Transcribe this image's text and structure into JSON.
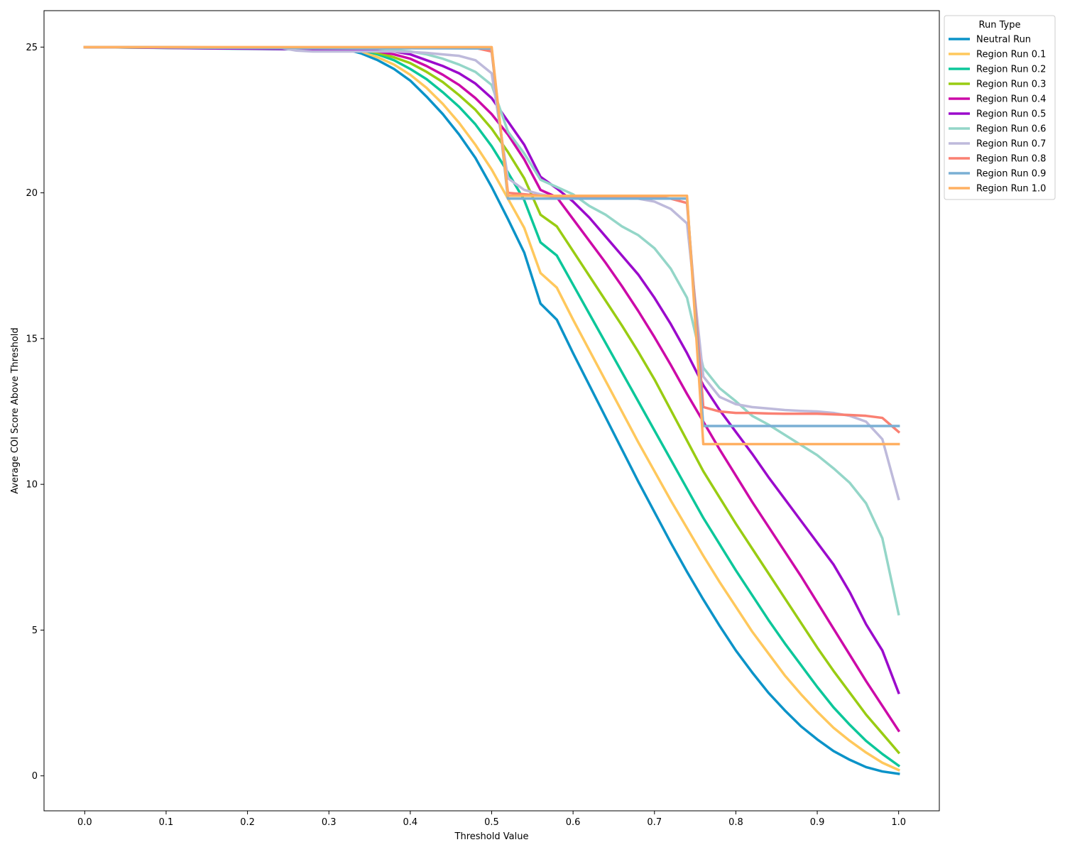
{
  "chart_data": {
    "type": "line",
    "xlabel": "Threshold Value",
    "ylabel": "Average COI Score Above Threshold",
    "xlim": [
      -0.05,
      1.05
    ],
    "ylim": [
      -1.2,
      26.25
    ],
    "xticks": [
      0.0,
      0.1,
      0.2,
      0.3,
      0.4,
      0.5,
      0.6,
      0.7,
      0.8,
      0.9,
      1.0
    ],
    "xtick_labels": [
      "0.0",
      "0.1",
      "0.2",
      "0.3",
      "0.4",
      "0.5",
      "0.6",
      "0.7",
      "0.8",
      "0.9",
      "1.0"
    ],
    "yticks": [
      0,
      5,
      10,
      15,
      20,
      25
    ],
    "ytick_labels": [
      "0",
      "5",
      "10",
      "15",
      "20",
      "25"
    ],
    "grid": false,
    "legend": {
      "title": "Run Type",
      "placement": "outside-top-right"
    },
    "series": [
      {
        "name": "Neutral Run",
        "color": "#0b93c8",
        "x": [
          0,
          0.3,
          0.32,
          0.34,
          0.36,
          0.38,
          0.4,
          0.42,
          0.44,
          0.46,
          0.48,
          0.5,
          0.52,
          0.54,
          0.56,
          0.58,
          0.6,
          0.62,
          0.64,
          0.66,
          0.68,
          0.7,
          0.72,
          0.74,
          0.76,
          0.78,
          0.8,
          0.82,
          0.84,
          0.86,
          0.88,
          0.9,
          0.92,
          0.94,
          0.96,
          0.98,
          1.0
        ],
        "y": [
          25,
          24.98,
          24.93,
          24.78,
          24.55,
          24.25,
          23.85,
          23.3,
          22.7,
          22.0,
          21.2,
          20.2,
          19.1,
          17.95,
          16.2,
          15.65,
          14.5,
          13.4,
          12.3,
          11.2,
          10.1,
          9.05,
          8.0,
          7.0,
          6.05,
          5.15,
          4.3,
          3.55,
          2.85,
          2.25,
          1.7,
          1.25,
          0.85,
          0.55,
          0.3,
          0.15,
          0.07
        ]
      },
      {
        "name": "Region Run 0.1",
        "color": "#ffc85c",
        "x": [
          0,
          0.32,
          0.34,
          0.36,
          0.38,
          0.4,
          0.42,
          0.44,
          0.46,
          0.48,
          0.5,
          0.52,
          0.54,
          0.56,
          0.58,
          0.6,
          0.62,
          0.64,
          0.66,
          0.68,
          0.7,
          0.72,
          0.74,
          0.76,
          0.78,
          0.8,
          0.82,
          0.84,
          0.86,
          0.88,
          0.9,
          0.92,
          0.94,
          0.96,
          0.98,
          1.0
        ],
        "y": [
          25,
          24.98,
          24.85,
          24.65,
          24.4,
          24.05,
          23.6,
          23.05,
          22.4,
          21.65,
          20.8,
          19.8,
          18.8,
          17.25,
          16.75,
          15.65,
          14.6,
          13.55,
          12.5,
          11.45,
          10.45,
          9.45,
          8.5,
          7.55,
          6.65,
          5.8,
          4.95,
          4.2,
          3.45,
          2.8,
          2.2,
          1.65,
          1.2,
          0.8,
          0.45,
          0.2
        ]
      },
      {
        "name": "Region Run 0.2",
        "color": "#0cc79a",
        "x": [
          0,
          0.34,
          0.36,
          0.38,
          0.4,
          0.42,
          0.44,
          0.46,
          0.48,
          0.5,
          0.52,
          0.54,
          0.56,
          0.58,
          0.6,
          0.62,
          0.64,
          0.66,
          0.68,
          0.7,
          0.72,
          0.74,
          0.76,
          0.78,
          0.8,
          0.82,
          0.84,
          0.86,
          0.88,
          0.9,
          0.92,
          0.94,
          0.96,
          0.98,
          1.0
        ],
        "y": [
          25,
          24.9,
          24.75,
          24.55,
          24.25,
          23.9,
          23.45,
          22.95,
          22.35,
          21.6,
          20.7,
          19.75,
          18.3,
          17.85,
          16.85,
          15.85,
          14.85,
          13.85,
          12.85,
          11.85,
          10.85,
          9.85,
          8.85,
          7.95,
          7.05,
          6.2,
          5.35,
          4.55,
          3.8,
          3.05,
          2.35,
          1.75,
          1.2,
          0.75,
          0.35
        ]
      },
      {
        "name": "Region Run 0.3",
        "color": "#99cc12",
        "x": [
          0,
          0.34,
          0.36,
          0.38,
          0.4,
          0.42,
          0.44,
          0.46,
          0.48,
          0.5,
          0.52,
          0.54,
          0.56,
          0.58,
          0.6,
          0.62,
          0.64,
          0.66,
          0.68,
          0.7,
          0.72,
          0.74,
          0.76,
          0.78,
          0.8,
          0.82,
          0.84,
          0.86,
          0.88,
          0.9,
          0.92,
          0.94,
          0.96,
          0.98,
          1.0
        ],
        "y": [
          25,
          24.92,
          24.8,
          24.65,
          24.45,
          24.15,
          23.8,
          23.35,
          22.85,
          22.2,
          21.4,
          20.5,
          19.25,
          18.85,
          18.0,
          17.15,
          16.3,
          15.45,
          14.55,
          13.6,
          12.55,
          11.5,
          10.45,
          9.55,
          8.65,
          7.8,
          6.95,
          6.1,
          5.25,
          4.4,
          3.6,
          2.85,
          2.1,
          1.45,
          0.8
        ]
      },
      {
        "name": "Region Run 0.4",
        "color": "#cc0aa8",
        "x": [
          0,
          0.34,
          0.36,
          0.38,
          0.4,
          0.42,
          0.44,
          0.46,
          0.48,
          0.5,
          0.52,
          0.54,
          0.56,
          0.58,
          0.6,
          0.62,
          0.64,
          0.66,
          0.68,
          0.7,
          0.72,
          0.74,
          0.76,
          0.78,
          0.8,
          0.82,
          0.84,
          0.86,
          0.88,
          0.9,
          0.92,
          0.94,
          0.96,
          0.98,
          1.0
        ],
        "y": [
          25,
          24.95,
          24.85,
          24.75,
          24.6,
          24.35,
          24.05,
          23.7,
          23.25,
          22.7,
          22.0,
          21.15,
          20.1,
          19.85,
          19.1,
          18.35,
          17.6,
          16.8,
          15.95,
          15.05,
          14.1,
          13.1,
          12.15,
          11.2,
          10.3,
          9.4,
          8.55,
          7.7,
          6.85,
          5.95,
          5.05,
          4.15,
          3.25,
          2.4,
          1.55
        ]
      },
      {
        "name": "Region Run 0.5",
        "color": "#9b0acc",
        "x": [
          0,
          0.36,
          0.38,
          0.4,
          0.42,
          0.44,
          0.46,
          0.48,
          0.5,
          0.52,
          0.54,
          0.56,
          0.58,
          0.6,
          0.62,
          0.64,
          0.66,
          0.68,
          0.7,
          0.72,
          0.74,
          0.76,
          0.78,
          0.8,
          0.82,
          0.84,
          0.86,
          0.88,
          0.9,
          0.92,
          0.94,
          0.96,
          0.98,
          1.0
        ],
        "y": [
          25,
          24.9,
          24.85,
          24.75,
          24.55,
          24.35,
          24.1,
          23.75,
          23.25,
          22.45,
          21.65,
          20.55,
          20.15,
          19.7,
          19.15,
          18.5,
          17.85,
          17.2,
          16.4,
          15.5,
          14.5,
          13.4,
          12.55,
          11.8,
          11.05,
          10.25,
          9.5,
          8.75,
          8.0,
          7.25,
          6.3,
          5.2,
          4.3,
          2.85
        ]
      },
      {
        "name": "Region Run 0.6",
        "color": "#94d6c8",
        "x": [
          0,
          0.36,
          0.38,
          0.4,
          0.42,
          0.44,
          0.46,
          0.48,
          0.5,
          0.52,
          0.54,
          0.56,
          0.58,
          0.6,
          0.62,
          0.64,
          0.66,
          0.68,
          0.7,
          0.72,
          0.74,
          0.76,
          0.78,
          0.8,
          0.82,
          0.84,
          0.86,
          0.88,
          0.9,
          0.92,
          0.94,
          0.96,
          0.98,
          1.0
        ],
        "y": [
          25,
          24.95,
          24.9,
          24.85,
          24.75,
          24.6,
          24.4,
          24.15,
          23.7,
          22.1,
          21.35,
          20.45,
          20.2,
          19.95,
          19.55,
          19.25,
          18.85,
          18.55,
          18.1,
          17.4,
          16.4,
          14.0,
          13.3,
          12.85,
          12.35,
          12.05,
          11.7,
          11.35,
          11.0,
          10.55,
          10.05,
          9.35,
          8.15,
          5.55
        ]
      },
      {
        "name": "Region Run 0.7",
        "color": "#bebadb",
        "x": [
          0,
          0.24,
          0.26,
          0.28,
          0.3,
          0.32,
          0.34,
          0.36,
          0.38,
          0.4,
          0.42,
          0.44,
          0.46,
          0.48,
          0.5,
          0.52,
          0.54,
          0.56,
          0.58,
          0.6,
          0.62,
          0.64,
          0.66,
          0.68,
          0.7,
          0.72,
          0.74,
          0.76,
          0.78,
          0.8,
          0.82,
          0.84,
          0.86,
          0.88,
          0.9,
          0.92,
          0.94,
          0.96,
          0.98,
          1.0
        ],
        "y": [
          25,
          24.98,
          24.88,
          24.85,
          24.85,
          24.85,
          24.85,
          24.85,
          24.85,
          24.83,
          24.8,
          24.75,
          24.7,
          24.55,
          24.1,
          20.5,
          20.1,
          19.95,
          19.85,
          19.85,
          19.85,
          19.85,
          19.82,
          19.8,
          19.7,
          19.45,
          18.95,
          13.7,
          13.0,
          12.75,
          12.65,
          12.6,
          12.55,
          12.52,
          12.5,
          12.45,
          12.35,
          12.15,
          11.55,
          9.5
        ]
      },
      {
        "name": "Region Run 0.8",
        "color": "#fa8072",
        "x": [
          0,
          0.48,
          0.5,
          0.52,
          0.54,
          0.56,
          0.58,
          0.6,
          0.62,
          0.64,
          0.66,
          0.68,
          0.7,
          0.72,
          0.74,
          0.76,
          0.78,
          0.8,
          0.82,
          0.84,
          0.86,
          0.88,
          0.9,
          0.92,
          0.94,
          0.96,
          0.98,
          1.0
        ],
        "y": [
          25,
          24.97,
          24.85,
          20.0,
          19.95,
          19.9,
          19.88,
          19.88,
          19.88,
          19.88,
          19.88,
          19.85,
          19.85,
          19.8,
          19.65,
          12.65,
          12.5,
          12.45,
          12.45,
          12.43,
          12.42,
          12.42,
          12.42,
          12.4,
          12.38,
          12.35,
          12.28,
          11.8
        ]
      },
      {
        "name": "Region Run 0.9",
        "color": "#7aafd4",
        "x": [
          0,
          0.5,
          0.52,
          0.74,
          0.76,
          1.0
        ],
        "y": [
          25,
          24.95,
          19.8,
          19.8,
          12.0,
          12.0
        ]
      },
      {
        "name": "Region Run 1.0",
        "color": "#ffb062",
        "x": [
          0,
          0.5,
          0.52,
          0.74,
          0.76,
          1.0
        ],
        "y": [
          25,
          25,
          19.9,
          19.9,
          11.38,
          11.38
        ]
      }
    ]
  }
}
